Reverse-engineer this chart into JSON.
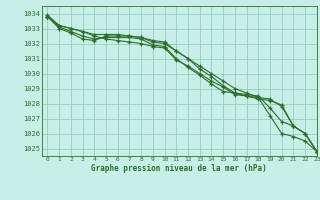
{
  "title": "Graphe pression niveau de la mer (hPa)",
  "background_color": "#c8eee8",
  "grid_color": "#99ccbb",
  "line_color": "#2d6e2d",
  "marker_color": "#2d6e2d",
  "xlim": [
    -0.5,
    23
  ],
  "ylim": [
    1024.5,
    1034.5
  ],
  "yticks": [
    1025,
    1026,
    1027,
    1028,
    1029,
    1030,
    1031,
    1032,
    1033,
    1034
  ],
  "xticks": [
    0,
    1,
    2,
    3,
    4,
    5,
    6,
    7,
    8,
    9,
    10,
    11,
    12,
    13,
    14,
    15,
    16,
    17,
    18,
    19,
    20,
    21,
    22,
    23
  ],
  "series": [
    [
      1033.8,
      1033.2,
      1033.0,
      1032.8,
      1032.5,
      1032.3,
      1032.2,
      1032.1,
      1032.0,
      1031.8,
      1031.7,
      1030.9,
      1030.5,
      1030.0,
      1029.5,
      1029.1,
      1028.6,
      1028.5,
      1028.4,
      1027.2,
      1026.0,
      1025.8,
      1025.5,
      1024.8
    ],
    [
      1033.8,
      1033.1,
      1032.8,
      1032.5,
      1032.3,
      1032.4,
      1032.4,
      1032.4,
      1032.3,
      1031.9,
      1031.8,
      1031.0,
      1030.4,
      1029.9,
      1029.3,
      1028.8,
      1028.7,
      1028.6,
      1028.5,
      1027.7,
      1026.8,
      1026.5,
      1026.0,
      1024.8
    ],
    [
      1033.8,
      1033.0,
      1032.7,
      1032.3,
      1032.2,
      1032.5,
      1032.5,
      1032.5,
      1032.4,
      1032.1,
      1032.0,
      1031.5,
      1031.0,
      1030.5,
      1030.0,
      1029.5,
      1029.0,
      1028.7,
      1028.4,
      1028.3,
      1027.8,
      1026.5,
      1026.0,
      1024.8
    ],
    [
      1033.9,
      1033.2,
      1033.0,
      1032.8,
      1032.6,
      1032.6,
      1032.6,
      1032.5,
      1032.4,
      1032.2,
      1032.1,
      1031.5,
      1031.0,
      1030.3,
      1029.8,
      1029.2,
      1028.7,
      1028.5,
      1028.3,
      1028.2,
      1027.9,
      1026.5,
      1026.0,
      1024.8
    ]
  ]
}
